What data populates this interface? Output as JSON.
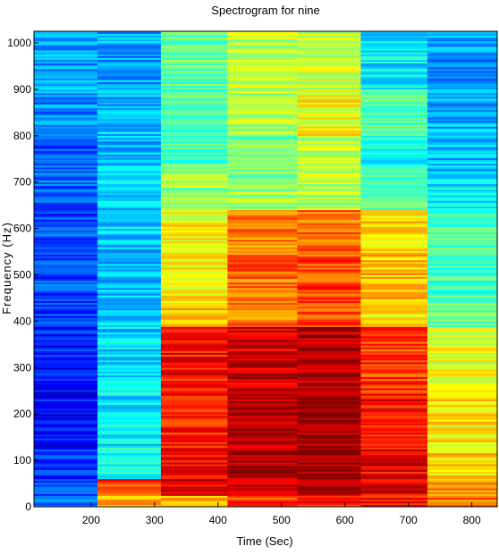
{
  "chart_data": {
    "type": "heatmap",
    "title": "Spectrogram for nine",
    "xlabel": "Time (Sec)",
    "ylabel": "Frequency (Hz)",
    "xlim": [
      110,
      840
    ],
    "ylim": [
      0,
      1025
    ],
    "x_ticks": [
      200,
      300,
      400,
      500,
      600,
      700,
      800
    ],
    "y_ticks": [
      0,
      100,
      200,
      300,
      400,
      500,
      600,
      700,
      800,
      900,
      1000
    ],
    "colormap": "jet",
    "grid": false,
    "time_frames": [
      {
        "t_start": 110,
        "t_end": 210
      },
      {
        "t_start": 210,
        "t_end": 310
      },
      {
        "t_start": 310,
        "t_end": 415
      },
      {
        "t_start": 415,
        "t_end": 525
      },
      {
        "t_start": 525,
        "t_end": 625
      },
      {
        "t_start": 625,
        "t_end": 730
      },
      {
        "t_start": 730,
        "t_end": 840
      }
    ],
    "frequency_bands_hz": [
      0,
      25,
      60,
      130,
      250,
      390,
      450,
      550,
      640,
      720,
      800,
      900,
      1025
    ],
    "intensity": [
      [
        0.22,
        0.2,
        0.17,
        0.13,
        0.15,
        0.18,
        0.2,
        0.2,
        0.22,
        0.22,
        0.26,
        0.28
      ],
      [
        0.7,
        0.82,
        0.4,
        0.36,
        0.34,
        0.33,
        0.32,
        0.32,
        0.33,
        0.31,
        0.3,
        0.29
      ],
      [
        0.68,
        0.92,
        0.88,
        0.84,
        0.86,
        0.66,
        0.63,
        0.62,
        0.52,
        0.46,
        0.46,
        0.48
      ],
      [
        0.82,
        0.95,
        0.97,
        0.95,
        0.92,
        0.76,
        0.77,
        0.74,
        0.52,
        0.5,
        0.55,
        0.56
      ],
      [
        0.84,
        0.97,
        0.99,
        0.97,
        0.94,
        0.8,
        0.81,
        0.77,
        0.55,
        0.56,
        0.63,
        0.58
      ],
      [
        0.86,
        0.9,
        0.88,
        0.86,
        0.82,
        0.66,
        0.68,
        0.66,
        0.44,
        0.4,
        0.46,
        0.36
      ],
      [
        0.76,
        0.74,
        0.66,
        0.64,
        0.6,
        0.48,
        0.45,
        0.44,
        0.36,
        0.32,
        0.3,
        0.28
      ]
    ]
  }
}
